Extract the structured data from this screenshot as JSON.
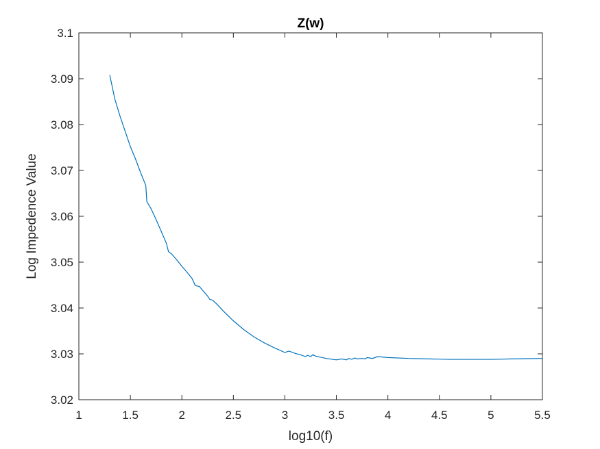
{
  "chart_data": {
    "type": "line",
    "title": "Z(w)",
    "xlabel": "log10(f)",
    "ylabel": "Log Impedence Value",
    "xlim": [
      1,
      5.5
    ],
    "ylim": [
      3.02,
      3.1
    ],
    "xticks": [
      "1",
      "1.5",
      "2",
      "2.5",
      "3",
      "3.5",
      "4",
      "4.5",
      "5",
      "5.5"
    ],
    "yticks": [
      "3.02",
      "3.03",
      "3.04",
      "3.05",
      "3.06",
      "3.07",
      "3.08",
      "3.09",
      "3.1"
    ],
    "grid": false,
    "line_color": "#0072BD",
    "series": [
      {
        "x": [
          1.3,
          1.35,
          1.4,
          1.45,
          1.5,
          1.55,
          1.6,
          1.65,
          1.66,
          1.7,
          1.75,
          1.8,
          1.85,
          1.87,
          1.9,
          1.95,
          2.0,
          2.05,
          2.1,
          2.13,
          2.17,
          2.2,
          2.25,
          2.27,
          2.3,
          2.35,
          2.4,
          2.5,
          2.6,
          2.7,
          2.8,
          2.9,
          3.0,
          3.04,
          3.1,
          3.15,
          3.2,
          3.22,
          3.25,
          3.27,
          3.3,
          3.4,
          3.5,
          3.55,
          3.6,
          3.62,
          3.65,
          3.68,
          3.7,
          3.75,
          3.78,
          3.8,
          3.85,
          3.9,
          4.0,
          4.2,
          4.4,
          4.6,
          4.8,
          5.0,
          5.2,
          5.5
        ],
        "y": [
          3.0908,
          3.0855,
          3.0818,
          3.0785,
          3.0752,
          3.0725,
          3.0695,
          3.0667,
          3.0632,
          3.0617,
          3.0593,
          3.0567,
          3.0541,
          3.0523,
          3.0518,
          3.0505,
          3.0491,
          3.0478,
          3.0464,
          3.0449,
          3.0447,
          3.0439,
          3.0426,
          3.0419,
          3.0417,
          3.0406,
          3.0394,
          3.0372,
          3.0353,
          3.0337,
          3.0324,
          3.0313,
          3.0303,
          3.0306,
          3.0301,
          3.0298,
          3.0294,
          3.0297,
          3.0294,
          3.0298,
          3.0295,
          3.029,
          3.0287,
          3.0289,
          3.0287,
          3.029,
          3.0288,
          3.0291,
          3.0289,
          3.029,
          3.0289,
          3.0292,
          3.029,
          3.0294,
          3.0292,
          3.029,
          3.0289,
          3.0288,
          3.0288,
          3.0288,
          3.0289,
          3.029
        ]
      }
    ]
  }
}
